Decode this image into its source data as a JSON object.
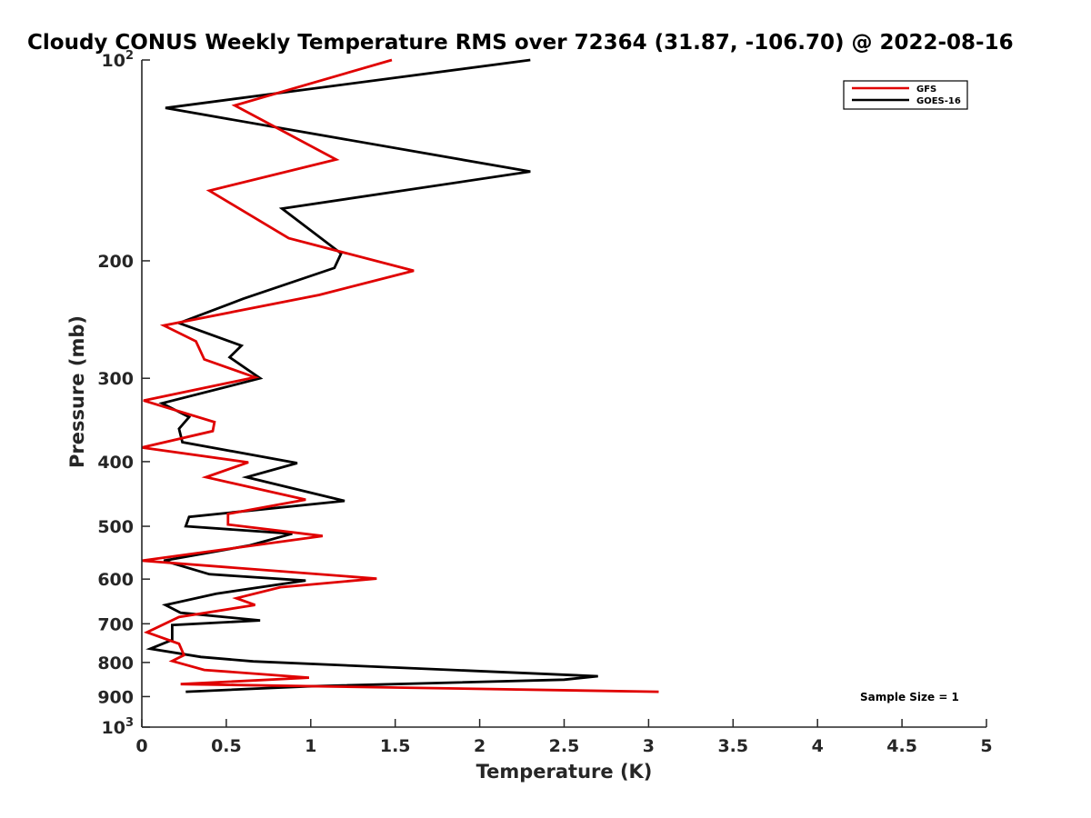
{
  "chart_data": {
    "type": "line",
    "title": "Cloudy CONUS Weekly Temperature RMS over 72364 (31.87, -106.70) @ 2022-08-16",
    "xlabel": "Temperature (K)",
    "ylabel": "Pressure (mb)",
    "xlim": [
      0,
      5
    ],
    "ylim": [
      100,
      1000
    ],
    "y_scale": "log",
    "y_reversed": true,
    "grid": false,
    "legend_position": "top-right",
    "x_ticks": [
      "0",
      "0.5",
      "1",
      "1.5",
      "2",
      "2.5",
      "3",
      "3.5",
      "4",
      "4.5",
      "5"
    ],
    "y_ticks": [
      {
        "value": 100,
        "base": "10",
        "exp": "2"
      },
      {
        "value": 200,
        "label": "200"
      },
      {
        "value": 300,
        "label": "300"
      },
      {
        "value": 400,
        "label": "400"
      },
      {
        "value": 500,
        "label": "500"
      },
      {
        "value": 600,
        "label": "600"
      },
      {
        "value": 700,
        "label": "700"
      },
      {
        "value": 800,
        "label": "800"
      },
      {
        "value": 900,
        "label": "900"
      },
      {
        "value": 1000,
        "base": "10",
        "exp": "3"
      }
    ],
    "series": [
      {
        "name": "GFS",
        "color": "#e00000",
        "points": [
          [
            1.48,
            100
          ],
          [
            0.55,
            117
          ],
          [
            1.15,
            141
          ],
          [
            0.4,
            157
          ],
          [
            0.87,
            185
          ],
          [
            1.61,
            207
          ],
          [
            1.05,
            225
          ],
          [
            0.13,
            250
          ],
          [
            0.32,
            264
          ],
          [
            0.37,
            281
          ],
          [
            0.67,
            299
          ],
          [
            0.01,
            324
          ],
          [
            0.43,
            349
          ],
          [
            0.42,
            360
          ],
          [
            0.0,
            381
          ],
          [
            0.63,
            401
          ],
          [
            0.38,
            422
          ],
          [
            0.97,
            456
          ],
          [
            0.51,
            479
          ],
          [
            0.51,
            497
          ],
          [
            1.07,
            517
          ],
          [
            0.0,
            563
          ],
          [
            1.39,
            599
          ],
          [
            0.82,
            617
          ],
          [
            0.56,
            641
          ],
          [
            0.67,
            656
          ],
          [
            0.22,
            684
          ],
          [
            0.03,
            721
          ],
          [
            0.22,
            750
          ],
          [
            0.25,
            780
          ],
          [
            0.18,
            796
          ],
          [
            0.37,
            821
          ],
          [
            0.99,
            843
          ],
          [
            0.23,
            862
          ],
          [
            3.06,
            885
          ]
        ]
      },
      {
        "name": "GOES-16",
        "color": "#000000",
        "points": [
          [
            2.3,
            100
          ],
          [
            0.14,
            118
          ],
          [
            2.3,
            147
          ],
          [
            0.83,
            167
          ],
          [
            1.18,
            195
          ],
          [
            1.14,
            205
          ],
          [
            0.6,
            228
          ],
          [
            0.22,
            248
          ],
          [
            0.59,
            268
          ],
          [
            0.52,
            279
          ],
          [
            0.7,
            300
          ],
          [
            0.12,
            327
          ],
          [
            0.28,
            343
          ],
          [
            0.22,
            357
          ],
          [
            0.24,
            374
          ],
          [
            0.92,
            402
          ],
          [
            0.62,
            422
          ],
          [
            1.2,
            458
          ],
          [
            0.28,
            484
          ],
          [
            0.26,
            500
          ],
          [
            0.89,
            513
          ],
          [
            0.64,
            534
          ],
          [
            0.13,
            563
          ],
          [
            0.4,
            590
          ],
          [
            0.97,
            603
          ],
          [
            0.44,
            631
          ],
          [
            0.14,
            656
          ],
          [
            0.23,
            674
          ],
          [
            0.7,
            692
          ],
          [
            0.18,
            703
          ],
          [
            0.18,
            740
          ],
          [
            0.05,
            763
          ],
          [
            0.35,
            785
          ],
          [
            0.66,
            797
          ],
          [
            2.7,
            839
          ],
          [
            2.5,
            849
          ],
          [
            0.98,
            869
          ],
          [
            0.26,
            885
          ]
        ]
      }
    ],
    "annotations": [
      "Sample Size = 1"
    ]
  }
}
